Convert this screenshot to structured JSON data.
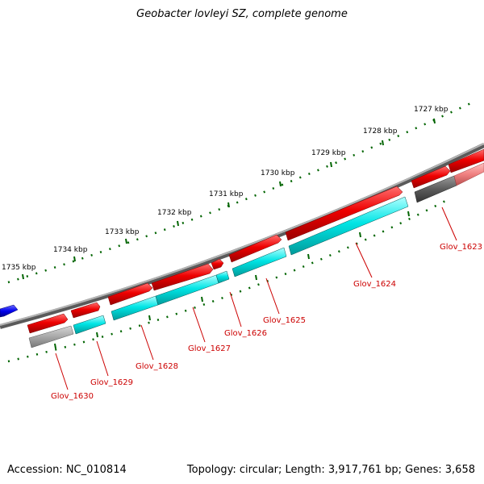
{
  "title": "Geobacter lovleyi SZ, complete genome",
  "footer": {
    "accession": "Accession: NC_010814",
    "summary": "Topology: circular; Length: 3,917,761 bp; Genes: 3,658"
  },
  "ticks": [
    "1727 kbp",
    "1728 kbp",
    "1729 kbp",
    "1730 kbp",
    "1731 kbp",
    "1732 kbp",
    "1733 kbp",
    "1734 kbp",
    "1735 kbp"
  ],
  "genes": [
    "Glov_1623",
    "Glov_1624",
    "Glov_1625",
    "Glov_1626",
    "Glov_1627",
    "Glov_1628",
    "Glov_1629",
    "Glov_1630"
  ],
  "colors": {
    "cds_red": "#e00000",
    "gene_cyan": "#00e5e5",
    "backbone": "#808080",
    "tick_green": "#006400",
    "label_red": "#cc0000",
    "blue_feature": "#0000ee",
    "grey_feature": "#999999"
  }
}
